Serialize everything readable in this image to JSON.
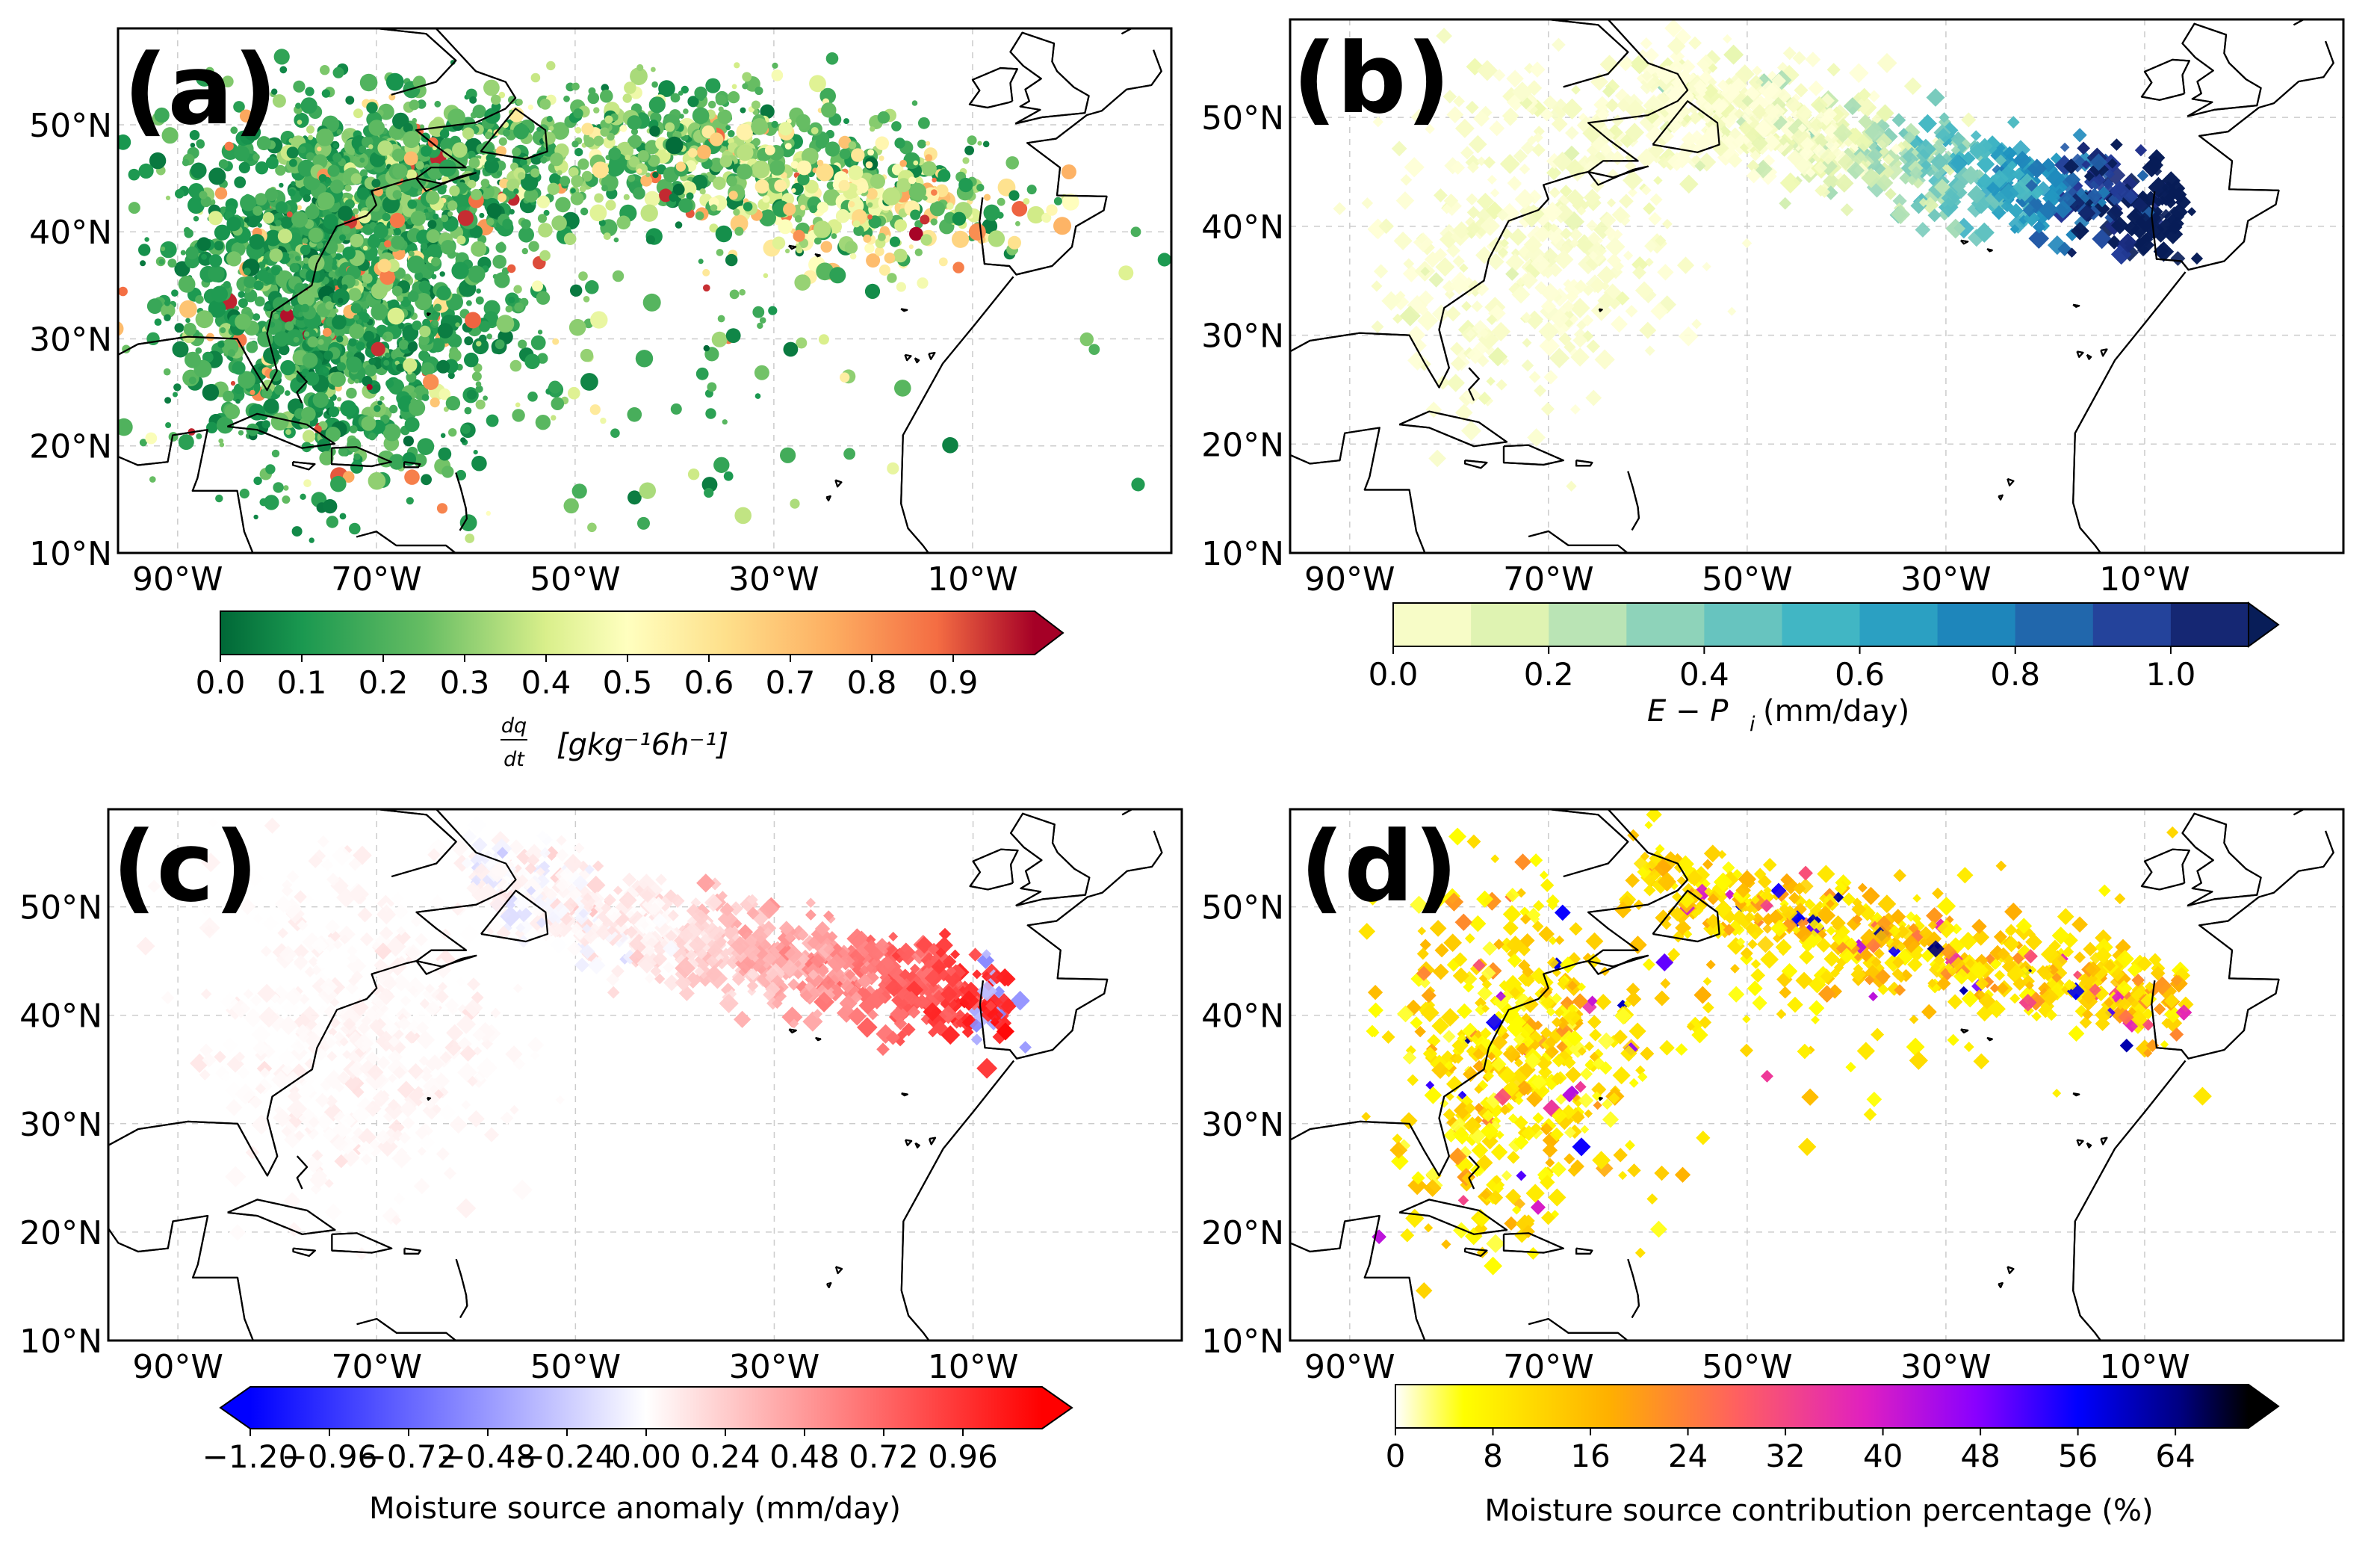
{
  "chart_data": [
    {
      "type": "scatter",
      "panel_label": "(a)",
      "description": "moisture uptake points",
      "lat_ticks": [
        "10°N",
        "20°N",
        "30°N",
        "40°N",
        "50°N"
      ],
      "lon_ticks": [
        "90°W",
        "70°W",
        "50°W",
        "30°W",
        "10°W"
      ],
      "colorbar": {
        "ticks": [
          "0.0",
          "0.1",
          "0.2",
          "0.3",
          "0.4",
          "0.5",
          "0.6",
          "0.7",
          "0.8",
          "0.9"
        ],
        "range": [
          0,
          1.0
        ],
        "extend": "max",
        "colormap": "RdYlGn_r",
        "label_frac_num": "dq",
        "label_frac_den": "dt",
        "label_units": "[gkg⁻¹6h⁻¹]"
      },
      "clusters": [
        {
          "lon": -75,
          "lat": 34,
          "value": 0.1,
          "spread_lon": 8,
          "spread_lat": 8
        },
        {
          "lon": -65,
          "lat": 45,
          "value": 0.2,
          "spread_lon": 8,
          "spread_lat": 4
        },
        {
          "lon": -40,
          "lat": 48,
          "value": 0.3,
          "spread_lon": 10,
          "spread_lat": 3
        },
        {
          "lon": -20,
          "lat": 43,
          "value": 0.6,
          "spread_lon": 8,
          "spread_lat": 3
        }
      ]
    },
    {
      "type": "heatmap",
      "panel_label": "(b)",
      "lat_ticks": [
        "10°N",
        "20°N",
        "30°N",
        "40°N",
        "50°N"
      ],
      "lon_ticks": [
        "90°W",
        "70°W",
        "50°W",
        "30°W",
        "10°W"
      ],
      "colorbar": {
        "ticks": [
          "0.0",
          "0.2",
          "0.4",
          "0.6",
          "0.8",
          "1.0"
        ],
        "range": [
          0,
          1.1
        ],
        "extend": "max",
        "colormap": "YlGnBu",
        "label_prefix": "E − P",
        "label_sub": "i",
        "label_units": "(mm/day)"
      }
    },
    {
      "type": "heatmap",
      "panel_label": "(c)",
      "lat_ticks": [
        "10°N",
        "20°N",
        "30°N",
        "40°N",
        "50°N"
      ],
      "lon_ticks": [
        "90°W",
        "70°W",
        "50°W",
        "30°W",
        "10°W"
      ],
      "colorbar": {
        "ticks": [
          "−1.20",
          "−0.96",
          "−0.72",
          "−0.48",
          "−0.24",
          "0.00",
          "0.24",
          "0.48",
          "0.72",
          "0.96"
        ],
        "range": [
          -1.2,
          1.2
        ],
        "extend": "both",
        "colormap": "bwr",
        "label": "Moisture source anomaly (mm/day)"
      }
    },
    {
      "type": "heatmap",
      "panel_label": "(d)",
      "lat_ticks": [
        "10°N",
        "20°N",
        "30°N",
        "40°N",
        "50°N"
      ],
      "lon_ticks": [
        "90°W",
        "70°W",
        "50°W",
        "30°W",
        "10°W"
      ],
      "colorbar": {
        "ticks": [
          "0",
          "8",
          "16",
          "24",
          "32",
          "40",
          "48",
          "56",
          "64"
        ],
        "range": [
          0,
          70
        ],
        "extend": "max",
        "colormap": "gnuplot2_r",
        "label": "Moisture source contribution percentage (%)"
      }
    }
  ]
}
